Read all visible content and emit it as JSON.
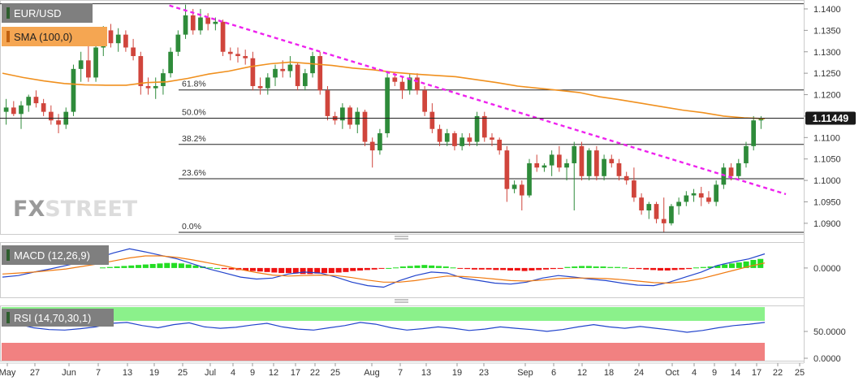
{
  "chart_data": [
    {
      "type": "candlestick",
      "symbol": "EUR/USD",
      "indicator": "SMA (100,0)",
      "y_ticks": [
        "1.1400",
        "1.1350",
        "1.1300",
        "1.1250",
        "1.1200",
        "1.1150",
        "1.1100",
        "1.1050",
        "1.1000",
        "1.0950",
        "1.0900"
      ],
      "ylim": [
        1.0877,
        1.1417
      ],
      "current_price": "1.11449",
      "current_price_value": 1.1145,
      "x_labels": [
        "May",
        "27",
        "Jun",
        "7",
        "13",
        "19",
        "25",
        "Jul",
        "4",
        "9",
        "12",
        "17",
        "22",
        "25",
        "Aug",
        "7",
        "13",
        "19",
        "23",
        "Sep",
        "6",
        "12",
        "18",
        "24",
        "Oct",
        "4",
        "9",
        "14",
        "17",
        "22",
        "25"
      ],
      "fib_levels": [
        {
          "label": "61.8%",
          "value": 1.1211
        },
        {
          "label": "50.0%",
          "value": 1.1145
        },
        {
          "label": "38.2%",
          "value": 1.1084
        },
        {
          "label": "23.6%",
          "value": 1.1004
        },
        {
          "label": "0.0%",
          "value": 1.0879
        }
      ],
      "top_line": 1.1412,
      "trendline": {
        "from": [
          0.2,
          1.1408
        ],
        "to": [
          0.965,
          1.0968
        ]
      },
      "candles": [
        [
          1.116,
          1.119,
          1.113,
          1.117
        ],
        [
          1.117,
          1.1185,
          1.115,
          1.1155
        ],
        [
          1.1155,
          1.1185,
          1.112,
          1.1175
        ],
        [
          1.1175,
          1.12,
          1.116,
          1.1195
        ],
        [
          1.1195,
          1.121,
          1.117,
          1.118
        ],
        [
          1.118,
          1.119,
          1.115,
          1.116
        ],
        [
          1.116,
          1.1175,
          1.113,
          1.114
        ],
        [
          1.114,
          1.1155,
          1.111,
          1.113
        ],
        [
          1.113,
          1.117,
          1.112,
          1.116
        ],
        [
          1.116,
          1.127,
          1.115,
          1.126
        ],
        [
          1.126,
          1.13,
          1.123,
          1.128
        ],
        [
          1.128,
          1.132,
          1.123,
          1.124
        ],
        [
          1.124,
          1.132,
          1.123,
          1.131
        ],
        [
          1.131,
          1.136,
          1.129,
          1.135
        ],
        [
          1.135,
          1.1365,
          1.131,
          1.132
        ],
        [
          1.132,
          1.1355,
          1.13,
          1.134
        ],
        [
          1.134,
          1.135,
          1.13,
          1.131
        ],
        [
          1.131,
          1.133,
          1.128,
          1.129
        ],
        [
          1.129,
          1.13,
          1.12,
          1.122
        ],
        [
          1.122,
          1.124,
          1.12,
          1.1215
        ],
        [
          1.1215,
          1.124,
          1.119,
          1.122
        ],
        [
          1.122,
          1.126,
          1.12,
          1.125
        ],
        [
          1.125,
          1.131,
          1.124,
          1.13
        ],
        [
          1.13,
          1.135,
          1.129,
          1.134
        ],
        [
          1.134,
          1.141,
          1.133,
          1.1385
        ],
        [
          1.1385,
          1.14,
          1.134,
          1.135
        ],
        [
          1.135,
          1.14,
          1.134,
          1.138
        ],
        [
          1.138,
          1.139,
          1.135,
          1.1365
        ],
        [
          1.1365,
          1.138,
          1.135,
          1.137
        ],
        [
          1.137,
          1.1375,
          1.129,
          1.13
        ],
        [
          1.13,
          1.131,
          1.128,
          1.1295
        ],
        [
          1.1295,
          1.131,
          1.1275,
          1.129
        ],
        [
          1.129,
          1.1305,
          1.127,
          1.1285
        ],
        [
          1.1285,
          1.13,
          1.121,
          1.122
        ],
        [
          1.122,
          1.124,
          1.12,
          1.1215
        ],
        [
          1.1215,
          1.125,
          1.12,
          1.124
        ],
        [
          1.124,
          1.127,
          1.122,
          1.126
        ],
        [
          1.126,
          1.128,
          1.124,
          1.1255
        ],
        [
          1.1255,
          1.129,
          1.124,
          1.127
        ],
        [
          1.127,
          1.1275,
          1.121,
          1.122
        ],
        [
          1.122,
          1.126,
          1.121,
          1.125
        ],
        [
          1.125,
          1.13,
          1.124,
          1.129
        ],
        [
          1.129,
          1.13,
          1.12,
          1.121
        ],
        [
          1.121,
          1.122,
          1.114,
          1.115
        ],
        [
          1.115,
          1.116,
          1.113,
          1.114
        ],
        [
          1.114,
          1.118,
          1.112,
          1.117
        ],
        [
          1.117,
          1.1175,
          1.112,
          1.113
        ],
        [
          1.113,
          1.117,
          1.111,
          1.116
        ],
        [
          1.116,
          1.1165,
          1.108,
          1.109
        ],
        [
          1.109,
          1.11,
          1.103,
          1.107
        ],
        [
          1.107,
          1.112,
          1.106,
          1.111
        ],
        [
          1.111,
          1.125,
          1.11,
          1.124
        ],
        [
          1.124,
          1.125,
          1.122,
          1.123
        ],
        [
          1.123,
          1.124,
          1.119,
          1.121
        ],
        [
          1.121,
          1.125,
          1.12,
          1.124
        ],
        [
          1.124,
          1.125,
          1.12,
          1.121
        ],
        [
          1.121,
          1.122,
          1.115,
          1.116
        ],
        [
          1.116,
          1.118,
          1.111,
          1.112
        ],
        [
          1.112,
          1.113,
          1.108,
          1.109
        ],
        [
          1.109,
          1.112,
          1.108,
          1.111
        ],
        [
          1.111,
          1.1115,
          1.107,
          1.108
        ],
        [
          1.108,
          1.111,
          1.107,
          1.11
        ],
        [
          1.11,
          1.111,
          1.108,
          1.109
        ],
        [
          1.109,
          1.116,
          1.108,
          1.115
        ],
        [
          1.115,
          1.116,
          1.109,
          1.11
        ],
        [
          1.11,
          1.111,
          1.108,
          1.1095
        ],
        [
          1.1095,
          1.11,
          1.106,
          1.107
        ],
        [
          1.107,
          1.108,
          1.095,
          1.098
        ],
        [
          1.098,
          1.1,
          1.097,
          1.099
        ],
        [
          1.099,
          1.1,
          1.093,
          1.0965
        ],
        [
          1.0965,
          1.105,
          1.096,
          1.104
        ],
        [
          1.104,
          1.106,
          1.102,
          1.103
        ],
        [
          1.103,
          1.104,
          1.102,
          1.1035
        ],
        [
          1.1035,
          1.107,
          1.101,
          1.106
        ],
        [
          1.106,
          1.108,
          1.102,
          1.103
        ],
        [
          1.103,
          1.105,
          1.1,
          1.104
        ],
        [
          1.104,
          1.109,
          1.093,
          1.108
        ],
        [
          1.108,
          1.109,
          1.1,
          1.101
        ],
        [
          1.101,
          1.1075,
          1.1,
          1.107
        ],
        [
          1.107,
          1.108,
          1.1,
          1.101
        ],
        [
          1.101,
          1.106,
          1.1,
          1.105
        ],
        [
          1.105,
          1.106,
          1.103,
          1.104
        ],
        [
          1.104,
          1.105,
          1.1,
          1.101
        ],
        [
          1.101,
          1.102,
          1.099,
          1.1
        ],
        [
          1.1,
          1.103,
          1.095,
          1.096
        ],
        [
          1.096,
          1.097,
          1.092,
          1.093
        ],
        [
          1.093,
          1.095,
          1.091,
          1.0945
        ],
        [
          1.0945,
          1.095,
          1.09,
          1.091
        ],
        [
          1.091,
          1.096,
          1.088,
          1.09
        ],
        [
          1.09,
          1.0945,
          1.0895,
          1.094
        ],
        [
          1.094,
          1.096,
          1.092,
          1.095
        ],
        [
          1.095,
          1.0975,
          1.094,
          1.0965
        ],
        [
          1.0965,
          1.098,
          1.095,
          1.097
        ],
        [
          1.097,
          1.0985,
          1.094,
          1.096
        ],
        [
          1.096,
          1.0975,
          1.0945,
          1.095
        ],
        [
          1.095,
          1.1,
          1.094,
          1.099
        ],
        [
          1.099,
          1.104,
          1.098,
          1.103
        ],
        [
          1.103,
          1.104,
          1.1,
          1.101
        ],
        [
          1.101,
          1.105,
          1.1,
          1.104
        ],
        [
          1.104,
          1.109,
          1.103,
          1.108
        ],
        [
          1.108,
          1.115,
          1.107,
          1.114
        ],
        [
          1.114,
          1.115,
          1.112,
          1.1145
        ]
      ],
      "sma": [
        1.125,
        1.124,
        1.1232,
        1.1226,
        1.1223,
        1.1222,
        1.1222,
        1.1228,
        1.123,
        1.1238,
        1.1248,
        1.1255,
        1.1265,
        1.1272,
        1.1276,
        1.1272,
        1.1268,
        1.1262,
        1.1258,
        1.1252,
        1.1248,
        1.1245,
        1.1242,
        1.1235,
        1.1228,
        1.122,
        1.1215,
        1.121,
        1.1205,
        1.1195,
        1.1188,
        1.118,
        1.1172,
        1.1164,
        1.1158,
        1.115,
        1.1146,
        1.1144
      ]
    },
    {
      "type": "bar+line",
      "indicator": "MACD (12,26,9)",
      "y_ticks": [
        "0.0000"
      ],
      "ylim": [
        -0.0055,
        0.0045
      ],
      "histogram": [
        0.0001,
        0.0002,
        0.0003,
        0.0004,
        0.0005,
        0.0006,
        0.0007,
        0.0008,
        0.0009,
        0.001,
        0.001,
        0.0009,
        0.0007,
        0.0005,
        0.0003,
        0.0001,
        0.0,
        -0.0002,
        -0.0003,
        -0.0004,
        -0.0005,
        -0.0006,
        -0.0007,
        -0.0008,
        -0.0009,
        -0.001,
        -0.001,
        -0.0011,
        -0.0012,
        -0.0012,
        -0.0011,
        -0.001,
        -0.001,
        -0.0009,
        -0.0008,
        -0.0006,
        -0.0005,
        -0.0004,
        -0.0003,
        -0.0001,
        0.0,
        0.0001,
        0.0003,
        0.0004,
        0.0005,
        0.0006,
        0.0005,
        0.0004,
        0.0003,
        0.0001,
        -0.0001,
        -0.0002,
        -0.0003,
        -0.0003,
        -0.0003,
        -0.0004,
        -0.0004,
        -0.0005,
        -0.0005,
        -0.0006,
        -0.0005,
        -0.0004,
        -0.0003,
        -0.0002,
        -0.0001,
        0.0002,
        0.0003,
        0.0004,
        0.0004,
        0.0003,
        0.0003,
        0.0002,
        0.0002,
        0.0001,
        -0.0001,
        -0.0002,
        -0.0003,
        -0.0004,
        -0.0005,
        -0.0005,
        -0.0004,
        -0.0003,
        -0.0002,
        0.0001,
        0.0002,
        0.0003,
        0.0005,
        0.0007,
        0.0009,
        0.0011,
        0.0013,
        0.0016,
        0.0018
      ],
      "macd_line": [
        -0.0018,
        -0.0015,
        -0.0008,
        -0.0002,
        0.0005,
        0.0012,
        0.002,
        0.003,
        0.0038,
        0.0032,
        0.0025,
        0.0018,
        0.0008,
        -0.0002,
        -0.001,
        -0.0018,
        -0.0022,
        -0.002,
        -0.0012,
        -0.0008,
        -0.001,
        -0.0018,
        -0.0028,
        -0.0035,
        -0.0038,
        -0.0025,
        -0.0015,
        -0.0008,
        -0.001,
        -0.002,
        -0.0025,
        -0.003,
        -0.0032,
        -0.0028,
        -0.002,
        -0.0015,
        -0.0018,
        -0.0022,
        -0.0025,
        -0.003,
        -0.0034,
        -0.0035,
        -0.0028,
        -0.0018,
        -0.0008,
        0.0005,
        0.0012,
        0.0018,
        0.0028
      ],
      "signal_line": [
        -0.0012,
        -0.001,
        -0.0008,
        -0.0005,
        -0.0002,
        0.0003,
        0.0008,
        0.0014,
        0.002,
        0.0024,
        0.0024,
        0.0021,
        0.0016,
        0.001,
        0.0004,
        -0.0003,
        -0.0009,
        -0.0014,
        -0.0016,
        -0.0015,
        -0.0014,
        -0.0015,
        -0.0019,
        -0.0024,
        -0.0028,
        -0.0028,
        -0.0025,
        -0.002,
        -0.0016,
        -0.0017,
        -0.0019,
        -0.0022,
        -0.0025,
        -0.0026,
        -0.0024,
        -0.0021,
        -0.002,
        -0.002,
        -0.0021,
        -0.0023,
        -0.0026,
        -0.0029,
        -0.003,
        -0.0027,
        -0.0021,
        -0.0013,
        -0.0005,
        0.0003,
        0.001
      ]
    },
    {
      "type": "line",
      "indicator": "RSI (14,70,30,1)",
      "y_ticks": [
        "50.0000",
        "0.0000"
      ],
      "overbought": 70,
      "oversold": 30,
      "ylim": [
        0,
        70
      ],
      "values": [
        55,
        58,
        50,
        46,
        45,
        48,
        52,
        60,
        62,
        55,
        50,
        57,
        61,
        52,
        49,
        51,
        56,
        60,
        52,
        47,
        45,
        50,
        55,
        62,
        58,
        50,
        45,
        48,
        52,
        49,
        44,
        47,
        52,
        49,
        46,
        42,
        46,
        52,
        57,
        52,
        49,
        53,
        49,
        45,
        40,
        44,
        50,
        55,
        58,
        62
      ]
    }
  ]
}
